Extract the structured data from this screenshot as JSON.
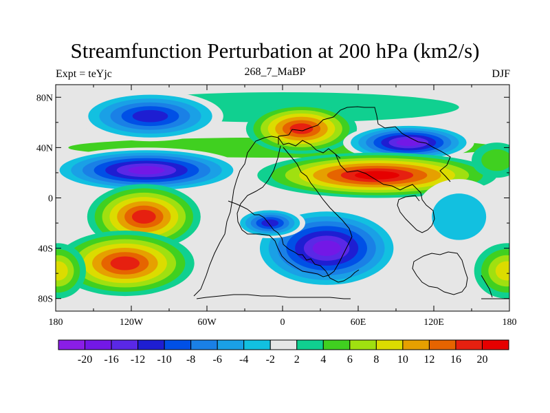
{
  "title": "Streamfunction Perturbation at 200 hPa (km2/s)",
  "subtitle_left": "Expt = teYjc",
  "subtitle_center": "268_7_MaBP",
  "subtitle_right": "DJF",
  "y_ticks": [
    "80N",
    "40N",
    "0",
    "40S",
    "80S"
  ],
  "x_ticks": [
    "180",
    "120W",
    "60W",
    "0",
    "60E",
    "120E",
    "180"
  ],
  "colorbar": {
    "labels": [
      "-20",
      "-16",
      "-12",
      "-10",
      "-8",
      "-6",
      "-4",
      "-2",
      "2",
      "4",
      "6",
      "8",
      "10",
      "12",
      "16",
      "20"
    ],
    "colors": [
      "#8a1ee6",
      "#7318e6",
      "#5a28e6",
      "#1e1ed2",
      "#0050e6",
      "#1a80e6",
      "#1aa0e6",
      "#12c0e0",
      "#e6e6e6",
      "#10d090",
      "#40d020",
      "#a0e010",
      "#dcdc00",
      "#e6a000",
      "#e66400",
      "#e62010",
      "#e60000"
    ]
  },
  "chart_data": {
    "type": "heatmap",
    "title": "Streamfunction Perturbation at 200 hPa (km2/s)",
    "x_range": [
      -180,
      180
    ],
    "y_range": [
      -90,
      90
    ],
    "contour_levels": [
      -20,
      -16,
      -12,
      -10,
      -8,
      -6,
      -4,
      -2,
      2,
      4,
      6,
      8,
      10,
      12,
      16,
      20
    ],
    "features": [
      {
        "lon": -100,
        "lat": 67,
        "value": -12
      },
      {
        "lon": -95,
        "lat": 20,
        "value": -19
      },
      {
        "lon": -95,
        "lat": -15,
        "value": 16
      },
      {
        "lon": -120,
        "lat": -50,
        "value": 16
      },
      {
        "lon": 30,
        "lat": 55,
        "value": 15
      },
      {
        "lon": 100,
        "lat": 43,
        "value": -18
      },
      {
        "lon": 90,
        "lat": 17,
        "value": 20
      },
      {
        "lon": 35,
        "lat": -45,
        "value": -18
      },
      {
        "lon": -10,
        "lat": -20,
        "value": -12
      },
      {
        "lon": 175,
        "lat": -60,
        "value": 8
      }
    ]
  }
}
